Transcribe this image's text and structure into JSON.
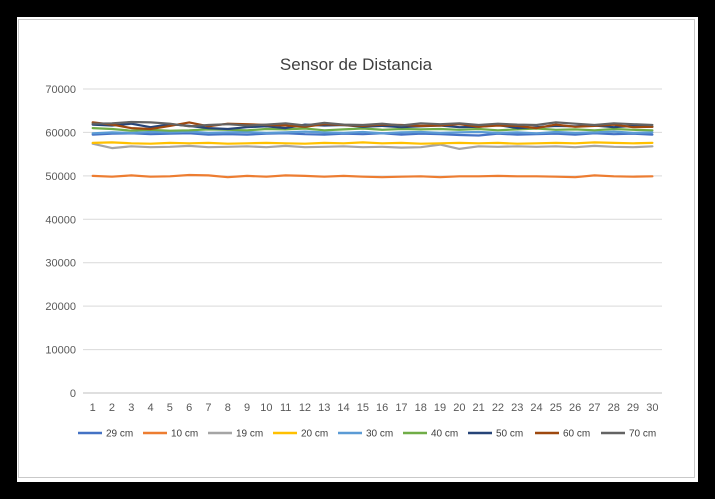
{
  "chart_data": {
    "type": "line",
    "title": "Sensor de Distancia",
    "xlabel": "",
    "ylabel": "",
    "ylim": [
      0,
      70000
    ],
    "yticks": [
      "0",
      "10000",
      "20000",
      "30000",
      "40000",
      "50000",
      "60000",
      "70000"
    ],
    "x": [
      "1",
      "2",
      "3",
      "4",
      "5",
      "6",
      "7",
      "8",
      "9",
      "10",
      "11",
      "12",
      "13",
      "14",
      "15",
      "16",
      "17",
      "18",
      "19",
      "20",
      "21",
      "22",
      "23",
      "24",
      "25",
      "26",
      "27",
      "28",
      "29",
      "30"
    ],
    "grid": true,
    "legend": "bottom",
    "series": [
      {
        "name": "29 cm",
        "color": "#4472C4",
        "values": [
          59500,
          59700,
          59800,
          59600,
          59700,
          59800,
          59500,
          59600,
          59500,
          59700,
          59800,
          59600,
          59500,
          59700,
          59600,
          59800,
          59500,
          59700,
          59600,
          59400,
          59300,
          59700,
          59500,
          59600,
          59700,
          59500,
          59800,
          59600,
          59700,
          59500
        ]
      },
      {
        "name": "10 cm",
        "color": "#ED7D31",
        "values": [
          50000,
          49800,
          50100,
          49800,
          49900,
          50200,
          50100,
          49700,
          50000,
          49800,
          50100,
          50000,
          49800,
          50000,
          49800,
          49700,
          49800,
          49900,
          49700,
          49900,
          49900,
          50000,
          49900,
          49900,
          49800,
          49700,
          50100,
          49900,
          49800,
          49900
        ]
      },
      {
        "name": "19 cm",
        "color": "#A5A5A5",
        "values": [
          57400,
          56400,
          56800,
          56600,
          56700,
          56900,
          56600,
          56700,
          56800,
          56600,
          56900,
          56600,
          56700,
          56800,
          56600,
          56700,
          56500,
          56600,
          57200,
          56200,
          56800,
          56700,
          56800,
          56700,
          56800,
          56600,
          56900,
          56700,
          56600,
          56800
        ]
      },
      {
        "name": "20 cm",
        "color": "#FFC000",
        "values": [
          57600,
          57700,
          57500,
          57400,
          57600,
          57500,
          57600,
          57400,
          57500,
          57600,
          57500,
          57400,
          57600,
          57500,
          57700,
          57500,
          57600,
          57400,
          57500,
          57600,
          57500,
          57600,
          57400,
          57500,
          57600,
          57500,
          57700,
          57600,
          57500,
          57600
        ]
      },
      {
        "name": "30 cm",
        "color": "#5B9BD5",
        "values": [
          59800,
          60000,
          59900,
          60100,
          60000,
          60200,
          59900,
          60000,
          60100,
          59900,
          60000,
          60200,
          60000,
          59900,
          60100,
          59800,
          60000,
          60100,
          59900,
          60000,
          60100,
          59900,
          60000,
          59800,
          60100,
          59900,
          60000,
          60200,
          59900,
          60000
        ]
      },
      {
        "name": "40 cm",
        "color": "#70AD47",
        "values": [
          61000,
          60800,
          60400,
          60600,
          60400,
          60500,
          60700,
          60600,
          60500,
          60800,
          60700,
          60900,
          60500,
          60700,
          60900,
          60600,
          60800,
          60700,
          60800,
          60600,
          60800,
          60500,
          60700,
          60900,
          60600,
          60700,
          60500,
          60800,
          60600,
          60500
        ]
      },
      {
        "name": "50 cm",
        "color": "#264478",
        "values": [
          61800,
          61600,
          62000,
          61200,
          61900,
          61500,
          61000,
          60800,
          61200,
          61400,
          61000,
          61800,
          61600,
          61700,
          61300,
          61500,
          61200,
          61400,
          61600,
          61200,
          61300,
          61700,
          61000,
          61200,
          61500,
          61400,
          61600,
          61200,
          61500,
          61300
        ]
      },
      {
        "name": "60 cm",
        "color": "#9E480E",
        "values": [
          62300,
          61800,
          61000,
          60800,
          61500,
          62300,
          61400,
          62000,
          61900,
          61700,
          61600,
          61300,
          61900,
          61700,
          61500,
          61800,
          61700,
          61500,
          61600,
          61900,
          61300,
          61600,
          61500,
          61000,
          61800,
          61300,
          61500,
          61800,
          61200,
          61300
        ]
      },
      {
        "name": "70 cm",
        "color": "#636363",
        "values": [
          62000,
          62100,
          62400,
          62300,
          62000,
          61400,
          61700,
          61900,
          61600,
          61800,
          62100,
          61600,
          62200,
          61800,
          61700,
          62000,
          61600,
          62100,
          61900,
          62100,
          61700,
          62000,
          61800,
          61700,
          62300,
          62000,
          61700,
          62100,
          61900,
          61700
        ]
      }
    ]
  }
}
